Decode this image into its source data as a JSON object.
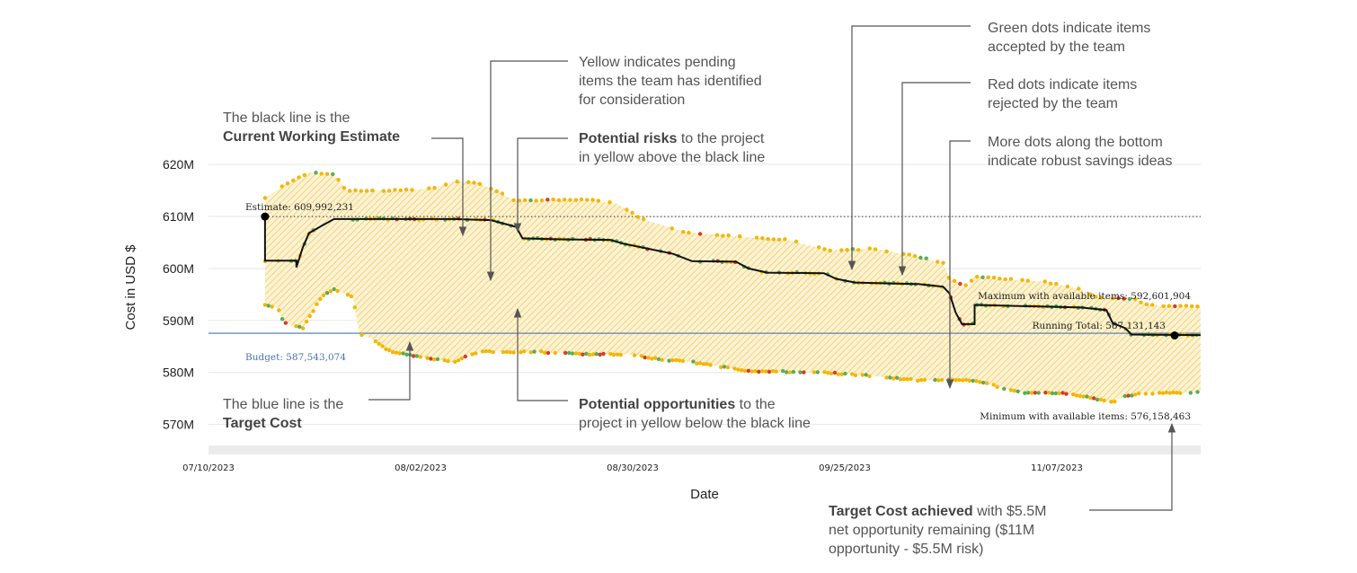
{
  "chart_data": {
    "type": "area",
    "xlabel": "Date",
    "ylabel": "Cost in USD $",
    "x_ticks": [
      "07/10/2023",
      "08/02/2023",
      "08/30/2023",
      "09/25/2023",
      "11/07/2023"
    ],
    "xlim": [
      "2023-07-10",
      "2023-12-15"
    ],
    "ylim": [
      567000000,
      624000000
    ],
    "y_ticks": [
      {
        "value": 570000000,
        "label": "570M"
      },
      {
        "value": 580000000,
        "label": "580M"
      },
      {
        "value": 590000000,
        "label": "590M"
      },
      {
        "value": 600000000,
        "label": "600M"
      },
      {
        "value": 610000000,
        "label": "610M"
      },
      {
        "value": 620000000,
        "label": "620M"
      }
    ],
    "budget": {
      "value": 587543074,
      "label": "Budget: 587,543,074",
      "color": "#4a72b0"
    },
    "estimate": {
      "value": 609992231,
      "label": "Estimate: 609,992,231",
      "date": "2023-07-19"
    },
    "running_total": {
      "value": 587131143,
      "label": "Running Total: 587,131,143",
      "date": "2023-12-10"
    },
    "maximum_label": "Maximum with available items: 592,601,904",
    "minimum_label": "Minimum with available items: 576,158,463",
    "band_color": "#f5c842",
    "line_color": "#111111",
    "dot_colors": {
      "accepted": "#5aab5a",
      "rejected": "#d73a2a",
      "pending": "#f2b705"
    },
    "series": [
      {
        "name": "Current Working Estimate",
        "points": [
          [
            "2023-07-19",
            610.0
          ],
          [
            "2023-07-19",
            601.5
          ],
          [
            "2023-07-24",
            601.5
          ],
          [
            "2023-07-24",
            600.2
          ],
          [
            "2023-07-25",
            604.0
          ],
          [
            "2023-07-26",
            606.8
          ],
          [
            "2023-07-28",
            608.2
          ],
          [
            "2023-07-30",
            609.5
          ],
          [
            "2023-08-04",
            609.5
          ],
          [
            "2023-08-10",
            609.5
          ],
          [
            "2023-08-18",
            609.5
          ],
          [
            "2023-08-24",
            609.3
          ],
          [
            "2023-08-28",
            608.0
          ],
          [
            "2023-08-29",
            605.8
          ],
          [
            "2023-09-04",
            605.6
          ],
          [
            "2023-09-12",
            605.5
          ],
          [
            "2023-09-14",
            604.8
          ],
          [
            "2023-09-18",
            603.8
          ],
          [
            "2023-09-22",
            602.8
          ],
          [
            "2023-09-25",
            601.4
          ],
          [
            "2023-10-02",
            601.3
          ],
          [
            "2023-10-04",
            600.0
          ],
          [
            "2023-10-07",
            599.2
          ],
          [
            "2023-10-16",
            599.1
          ],
          [
            "2023-10-18",
            598.0
          ],
          [
            "2023-10-21",
            597.3
          ],
          [
            "2023-10-31",
            597.0
          ],
          [
            "2023-11-04",
            596.5
          ],
          [
            "2023-11-05",
            595.2
          ],
          [
            "2023-11-06",
            591.5
          ],
          [
            "2023-11-07",
            589.3
          ],
          [
            "2023-11-09",
            589.3
          ],
          [
            "2023-11-09",
            593.0
          ],
          [
            "2023-11-26",
            592.5
          ],
          [
            "2023-11-30",
            592.0
          ],
          [
            "2023-12-01",
            589.5
          ],
          [
            "2023-12-03",
            588.5
          ],
          [
            "2023-12-04",
            587.3
          ],
          [
            "2023-12-15",
            587.2
          ]
        ]
      },
      {
        "name": "Maximum with available items",
        "points": [
          [
            "2023-07-19",
            613.5
          ],
          [
            "2023-07-22",
            616.0
          ],
          [
            "2023-07-26",
            618.5
          ],
          [
            "2023-07-30",
            618.0
          ],
          [
            "2023-08-01",
            615.0
          ],
          [
            "2023-08-10",
            615.0
          ],
          [
            "2023-08-15",
            615.5
          ],
          [
            "2023-08-18",
            616.8
          ],
          [
            "2023-08-22",
            616.5
          ],
          [
            "2023-08-28",
            613.0
          ],
          [
            "2023-09-08",
            613.3
          ],
          [
            "2023-09-13",
            612.5
          ],
          [
            "2023-09-17",
            609.5
          ],
          [
            "2023-09-24",
            607.0
          ],
          [
            "2023-10-04",
            606.0
          ],
          [
            "2023-10-10",
            605.5
          ],
          [
            "2023-10-17",
            603.5
          ],
          [
            "2023-10-24",
            603.8
          ],
          [
            "2023-10-30",
            602.5
          ],
          [
            "2023-11-04",
            601.0
          ],
          [
            "2023-11-05",
            598.0
          ],
          [
            "2023-11-08",
            596.5
          ],
          [
            "2023-11-09",
            598.5
          ],
          [
            "2023-11-13",
            598.0
          ],
          [
            "2023-11-20",
            597.5
          ],
          [
            "2023-11-26",
            596.0
          ],
          [
            "2023-11-28",
            594.5
          ],
          [
            "2023-12-04",
            594.2
          ],
          [
            "2023-12-07",
            593.0
          ],
          [
            "2023-12-15",
            592.6
          ]
        ]
      },
      {
        "name": "Minimum with available items",
        "points": [
          [
            "2023-07-19",
            593.0
          ],
          [
            "2023-07-21",
            592.5
          ],
          [
            "2023-07-22",
            589.5
          ],
          [
            "2023-07-25",
            588.5
          ],
          [
            "2023-07-26",
            590.5
          ],
          [
            "2023-07-28",
            594.5
          ],
          [
            "2023-07-30",
            596.0
          ],
          [
            "2023-08-02",
            594.5
          ],
          [
            "2023-08-03",
            587.5
          ],
          [
            "2023-08-05",
            586.5
          ],
          [
            "2023-08-08",
            584.0
          ],
          [
            "2023-08-13",
            583.0
          ],
          [
            "2023-08-18",
            582.0
          ],
          [
            "2023-08-22",
            584.0
          ],
          [
            "2023-08-31",
            584.0
          ],
          [
            "2023-09-07",
            583.5
          ],
          [
            "2023-09-15",
            583.5
          ],
          [
            "2023-09-20",
            582.5
          ],
          [
            "2023-09-25",
            582.0
          ],
          [
            "2023-10-04",
            580.3
          ],
          [
            "2023-10-16",
            580.0
          ],
          [
            "2023-10-24",
            579.3
          ],
          [
            "2023-10-31",
            578.5
          ],
          [
            "2023-11-09",
            578.5
          ],
          [
            "2023-11-16",
            576.2
          ],
          [
            "2023-11-23",
            576.0
          ],
          [
            "2023-11-26",
            575.5
          ],
          [
            "2023-12-01",
            574.2
          ],
          [
            "2023-12-03",
            575.5
          ],
          [
            "2023-12-06",
            576.0
          ],
          [
            "2023-12-15",
            576.16
          ]
        ]
      }
    ],
    "annotations": [
      {
        "lines": [
          [
            {
              "t": "The black line is the",
              "b": false
            }
          ],
          [
            {
              "t": "Current Working Estimate",
              "b": true
            }
          ]
        ]
      },
      {
        "lines": [
          [
            {
              "t": "The blue line is the",
              "b": false
            }
          ],
          [
            {
              "t": "Target Cost",
              "b": true
            }
          ]
        ]
      },
      {
        "lines": [
          [
            {
              "t": "Yellow indicates pending",
              "b": false
            }
          ],
          [
            {
              "t": "items the team has identified",
              "b": false
            }
          ],
          [
            {
              "t": "for consideration",
              "b": false
            }
          ]
        ]
      },
      {
        "lines": [
          [
            {
              "t": "Potential risks",
              "b": true
            },
            {
              "t": " to the project",
              "b": false
            }
          ],
          [
            {
              "t": "in yellow above the black line",
              "b": false
            }
          ]
        ]
      },
      {
        "lines": [
          [
            {
              "t": "Potential opportunities",
              "b": true
            },
            {
              "t": " to the",
              "b": false
            }
          ],
          [
            {
              "t": "project in yellow below the black line",
              "b": false
            }
          ]
        ]
      },
      {
        "lines": [
          [
            {
              "t": "Green dots indicate items",
              "b": false
            }
          ],
          [
            {
              "t": "accepted by the team",
              "b": false
            }
          ]
        ]
      },
      {
        "lines": [
          [
            {
              "t": "Red dots indicate items",
              "b": false
            }
          ],
          [
            {
              "t": "rejected by the team",
              "b": false
            }
          ]
        ]
      },
      {
        "lines": [
          [
            {
              "t": "More dots along the bottom",
              "b": false
            }
          ],
          [
            {
              "t": "indicate robust savings ideas",
              "b": false
            }
          ]
        ]
      },
      {
        "lines": [
          [
            {
              "t": "Target Cost achieved",
              "b": true
            },
            {
              "t": " with $5.5M",
              "b": false
            }
          ],
          [
            {
              "t": "net opportunity remaining ($11M",
              "b": false
            }
          ],
          [
            {
              "t": "opportunity - $5.5M risk)",
              "b": false
            }
          ]
        ]
      }
    ]
  }
}
